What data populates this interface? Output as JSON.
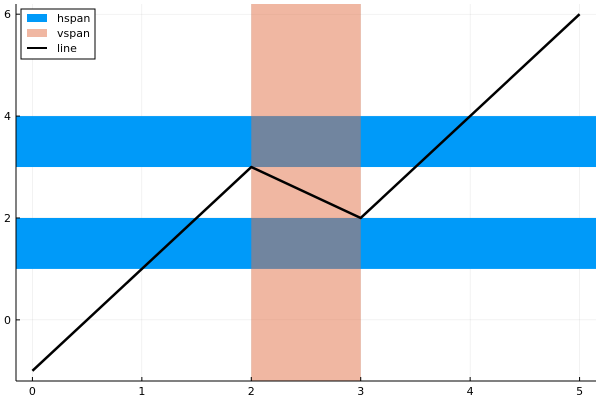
{
  "chart_data": {
    "type": "line",
    "title": "",
    "xlabel": "",
    "ylabel": "",
    "xlim": [
      -0.15,
      5.15
    ],
    "ylim": [
      -1.2,
      6.2
    ],
    "grid": true,
    "legend_position": "top-left",
    "x_ticks": [
      0,
      1,
      2,
      3,
      4,
      5
    ],
    "y_ticks": [
      0,
      2,
      4,
      6
    ],
    "x_tick_labels": [
      "0",
      "1",
      "2",
      "3",
      "4",
      "5"
    ],
    "y_tick_labels": [
      "0",
      "2",
      "4",
      "6"
    ],
    "series": [
      {
        "name": "hspan",
        "kind": "hspan",
        "color": "#009af9",
        "spans": [
          [
            1,
            2
          ],
          [
            3,
            4
          ]
        ]
      },
      {
        "name": "vspan",
        "kind": "vspan",
        "color": "#e26f46",
        "opacity": 0.5,
        "spans": [
          [
            2,
            3
          ]
        ]
      },
      {
        "name": "line",
        "kind": "line",
        "color": "#000000",
        "x": [
          0,
          2,
          3,
          5
        ],
        "y": [
          -1,
          3,
          2,
          6
        ]
      }
    ],
    "legend": {
      "entries": [
        "hspan",
        "vspan",
        "line"
      ]
    }
  }
}
